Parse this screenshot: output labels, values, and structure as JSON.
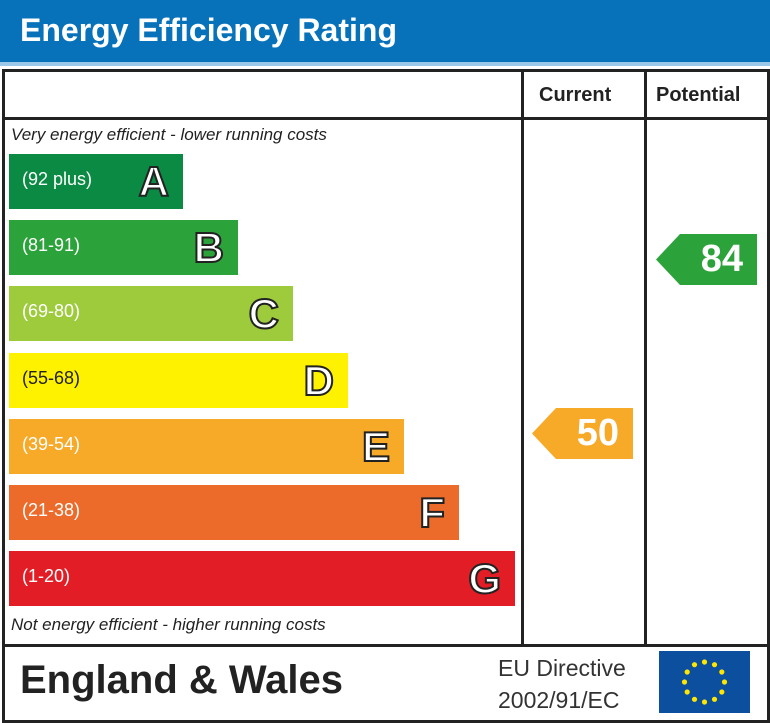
{
  "title": "Energy Efficiency Rating",
  "columns": {
    "current": "Current",
    "potential": "Potential"
  },
  "notes": {
    "top": "Very energy efficient - lower running costs",
    "bottom": "Not energy efficient - higher running costs"
  },
  "footer": {
    "region": "England & Wales",
    "directive_line1": "EU Directive",
    "directive_line2": "2002/91/EC",
    "flag": "eu-flag-icon"
  },
  "chart_data": {
    "type": "bar",
    "bands": [
      {
        "letter": "A",
        "range": "(92 plus)",
        "color": "#0a8a43"
      },
      {
        "letter": "B",
        "range": "(81-91)",
        "color": "#2ca33a"
      },
      {
        "letter": "C",
        "range": "(69-80)",
        "color": "#9dcb3c"
      },
      {
        "letter": "D",
        "range": "(55-68)",
        "color": "#fff200"
      },
      {
        "letter": "E",
        "range": "(39-54)",
        "color": "#f7a928"
      },
      {
        "letter": "F",
        "range": "(21-38)",
        "color": "#ec6a2a"
      },
      {
        "letter": "G",
        "range": "(1-20)",
        "color": "#e21d25"
      }
    ],
    "current": {
      "value": "50",
      "band": "E",
      "color": "#f7a928"
    },
    "potential": {
      "value": "84",
      "band": "B",
      "color": "#2ca33a"
    }
  }
}
